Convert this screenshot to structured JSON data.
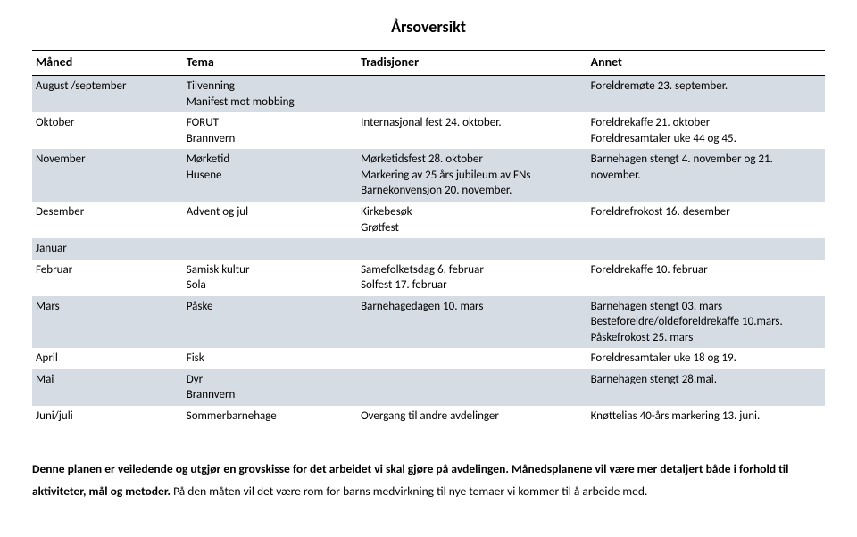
{
  "title": "Årsoversikt",
  "headers": {
    "month": "Måned",
    "theme": "Tema",
    "traditions": "Tradisjoner",
    "other": "Annet"
  },
  "rows": [
    {
      "shade": true,
      "month": "August /september",
      "theme": "Tilvenning\nManifest mot mobbing",
      "traditions": "",
      "other": "Foreldremøte 23. september."
    },
    {
      "shade": false,
      "month": "Oktober",
      "theme": "FORUT\nBrannvern",
      "traditions": "Internasjonal fest 24. oktober.",
      "other": "Foreldrekaffe 21. oktober\nForeldresamtaler uke 44 og 45."
    },
    {
      "shade": true,
      "month": "November",
      "theme": "Mørketid\nHusene",
      "traditions": "Mørketidsfest 28. oktober\nMarkering av 25 års jubileum av FNs Barnekonvensjon 20. november.",
      "other": "Barnehagen stengt 4. november og 21. november."
    },
    {
      "shade": false,
      "month": "Desember",
      "theme": "Advent og jul",
      "traditions": "Kirkebesøk\nGrøtfest",
      "other": "Foreldrefrokost 16. desember"
    },
    {
      "shade": true,
      "month": "Januar",
      "theme": "",
      "traditions": "",
      "other": ""
    },
    {
      "shade": false,
      "month": "Februar",
      "theme": "Samisk kultur\nSola",
      "traditions": "Samefolketsdag 6. februar\nSolfest 17. februar",
      "other": "Foreldrekaffe 10. februar"
    },
    {
      "shade": true,
      "month": "Mars",
      "theme": "Påske",
      "traditions": "Barnehagedagen 10. mars",
      "other": "Barnehagen stengt 03. mars\nBesteforeldre/oldeforeldrekaffe 10.mars.\nPåskefrokost 25. mars"
    },
    {
      "shade": false,
      "month": "April",
      "theme": "Fisk",
      "traditions": "",
      "other": "Foreldresamtaler uke 18 og 19."
    },
    {
      "shade": true,
      "month": "Mai",
      "theme": "Dyr\nBrannvern",
      "traditions": "",
      "other": "Barnehagen stengt 28.mai."
    },
    {
      "shade": false,
      "month": "Juni/juli",
      "theme": "Sommerbarnehage",
      "traditions": "Overgang til andre avdelinger",
      "other": "Knøttelias 40-års markering 13. juni."
    }
  ],
  "footer": {
    "part1": "Denne planen er veiledende og utgjør en grovskisse for det arbeidet vi skal gjøre på avdelingen. Månedsplanene vil være mer detaljert både i forhold til aktiviteter, mål og metoder.",
    "part2": " På den måten vil det være rom for barns medvirkning til nye temaer vi kommer til å arbeide med."
  }
}
